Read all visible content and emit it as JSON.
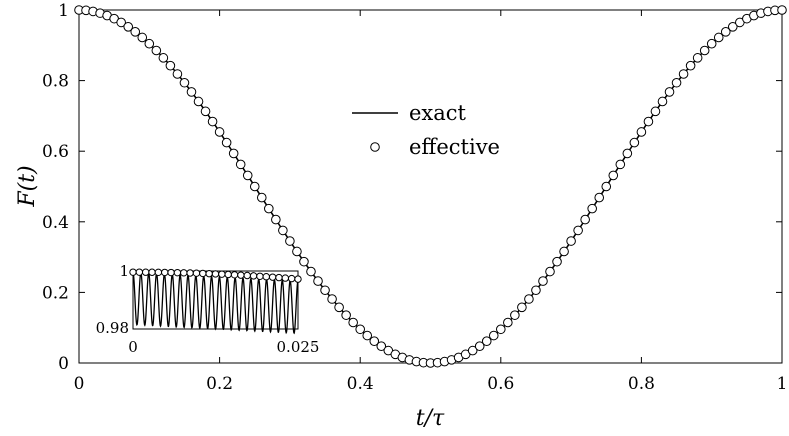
{
  "chart_data": {
    "type": "line",
    "xlabel": "t/τ",
    "ylabel": "F(t)",
    "xlim": [
      0,
      1
    ],
    "ylim": [
      0,
      1
    ],
    "x_ticks": [
      0,
      0.2,
      0.4,
      0.6,
      0.8,
      1
    ],
    "x_tick_labels": [
      "0",
      "0.2",
      "0.4",
      "0.6",
      "0.8",
      "1"
    ],
    "y_ticks": [
      0,
      0.2,
      0.4,
      0.6,
      0.8,
      1
    ],
    "y_tick_labels": [
      "0",
      "0.2",
      "0.4",
      "0.6",
      "0.8",
      "1"
    ],
    "legend": {
      "position": "center",
      "entries": [
        {
          "label": "exact",
          "marker": "line"
        },
        {
          "label": "effective",
          "marker": "open-circle"
        }
      ]
    },
    "series": [
      {
        "name": "exact",
        "style": "solid-line",
        "function": "cos^2(pi*x)",
        "x": [
          0,
          0.1,
          0.2,
          0.3,
          0.4,
          0.5,
          0.6,
          0.7,
          0.8,
          0.9,
          1.0
        ],
        "values": [
          1.0,
          0.905,
          0.655,
          0.345,
          0.095,
          0.0,
          0.095,
          0.345,
          0.655,
          0.905,
          1.0
        ]
      },
      {
        "name": "effective",
        "style": "open-circles",
        "function": "cos^2(pi*x)",
        "x": [
          0,
          0.1,
          0.2,
          0.3,
          0.4,
          0.5,
          0.6,
          0.7,
          0.8,
          0.9,
          1.0
        ],
        "values": [
          1.0,
          0.905,
          0.655,
          0.345,
          0.095,
          0.0,
          0.095,
          0.345,
          0.655,
          0.905,
          1.0
        ],
        "n_points": 101
      }
    ],
    "inset": {
      "xlim": [
        0,
        0.025
      ],
      "ylim": [
        0.98,
        1
      ],
      "x_tick_labels": [
        "0",
        "0.025"
      ],
      "y_tick_labels": [
        "0.98",
        "1"
      ],
      "exact_oscillation": {
        "cycles": 21,
        "min": 0.9815,
        "max": 0.9995
      },
      "effective_points": 27
    }
  }
}
